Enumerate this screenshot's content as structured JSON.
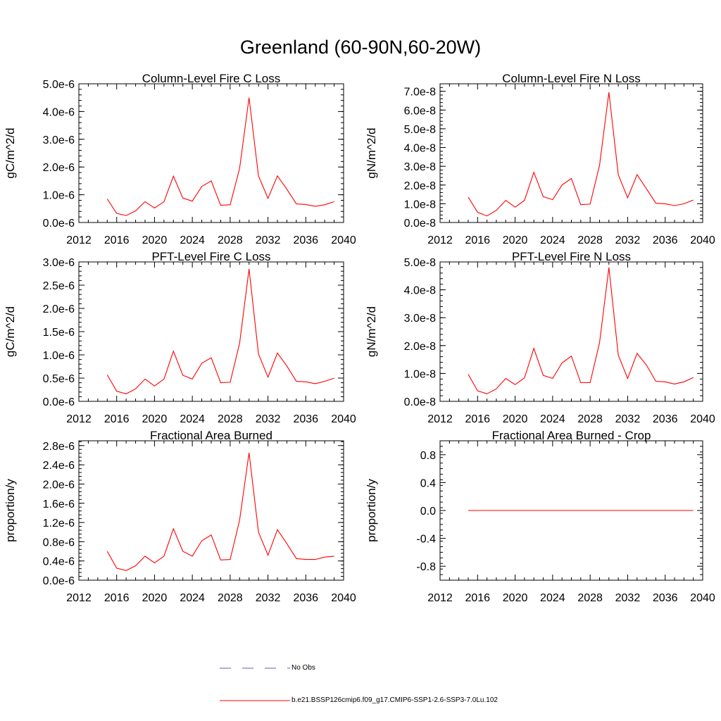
{
  "title": "Greenland (60-90N,60-20W)",
  "x_ticks": [
    2012,
    2016,
    2020,
    2024,
    2028,
    2032,
    2036,
    2040
  ],
  "legend": [
    {
      "label": "No Obs",
      "style": "dashed",
      "color": "#5b5bb5"
    },
    {
      "label": "b.e21.BSSP126cmip6.f09_g17.CMIP6-SSP1-2.6-SSP3-7.0Lu.102",
      "style": "solid",
      "color": "#ff0000"
    }
  ],
  "chart_data": [
    {
      "type": "line",
      "title": "Column-Level Fire C Loss",
      "ylabel": "gC/m^2/d",
      "xlim": [
        2012,
        2040
      ],
      "ylim": [
        0,
        5e-06
      ],
      "yticks": [
        0,
        1e-06,
        2e-06,
        3e-06,
        4e-06,
        5e-06
      ],
      "ytick_labels": [
        "0.0e-6",
        "1.0e-6",
        "2.0e-6",
        "3.0e-6",
        "4.0e-6",
        "5.0e-6"
      ],
      "x": [
        2015,
        2016,
        2017,
        2018,
        2019,
        2020,
        2021,
        2022,
        2023,
        2024,
        2025,
        2026,
        2027,
        2028,
        2029,
        2030,
        2031,
        2032,
        2033,
        2034,
        2035,
        2036,
        2037,
        2038,
        2039
      ],
      "series": [
        {
          "color": "#ff0000",
          "values": [
            8.5e-07,
            3.3e-07,
            2.5e-07,
            4.2e-07,
            7.5e-07,
            5.2e-07,
            7.5e-07,
            1.67e-06,
            8.8e-07,
            7.7e-07,
            1.3e-06,
            1.5e-06,
            6.2e-07,
            6.4e-07,
            1.95e-06,
            4.5e-06,
            1.68e-06,
            8.7e-07,
            1.68e-06,
            1.2e-06,
            6.7e-07,
            6.5e-07,
            5.8e-07,
            6.4e-07,
            7.5e-07
          ]
        }
      ]
    },
    {
      "type": "line",
      "title": "Column-Level Fire N Loss",
      "ylabel": "gN/m^2/d",
      "xlim": [
        2012,
        2040
      ],
      "ylim": [
        0,
        7.4e-08
      ],
      "yticks": [
        0,
        1e-08,
        2e-08,
        3e-08,
        4e-08,
        5e-08,
        6e-08,
        7e-08
      ],
      "ytick_labels": [
        "0.0e-8",
        "1.0e-8",
        "2.0e-8",
        "3.0e-8",
        "4.0e-8",
        "5.0e-8",
        "6.0e-8",
        "7.0e-8"
      ],
      "x": [
        2015,
        2016,
        2017,
        2018,
        2019,
        2020,
        2021,
        2022,
        2023,
        2024,
        2025,
        2026,
        2027,
        2028,
        2029,
        2030,
        2031,
        2032,
        2033,
        2034,
        2035,
        2036,
        2037,
        2038,
        2039
      ],
      "series": [
        {
          "color": "#ff0000",
          "values": [
            1.35e-08,
            5.5e-09,
            3.5e-09,
            6.5e-09,
            1.18e-08,
            8.2e-09,
            1.18e-08,
            2.68e-08,
            1.38e-08,
            1.22e-08,
            2e-08,
            2.35e-08,
            9.5e-09,
            9.8e-09,
            3.05e-08,
            6.95e-08,
            2.55e-08,
            1.32e-08,
            2.55e-08,
            1.8e-08,
            1.03e-08,
            1e-08,
            9e-09,
            1e-08,
            1.2e-08
          ]
        }
      ]
    },
    {
      "type": "line",
      "title": "PFT-Level Fire C Loss",
      "ylabel": "gC/m^2/d",
      "xlim": [
        2012,
        2040
      ],
      "ylim": [
        0,
        3e-06
      ],
      "yticks": [
        0,
        5e-07,
        1e-06,
        1.5e-06,
        2e-06,
        2.5e-06,
        3e-06
      ],
      "ytick_labels": [
        "0.0e-6",
        "0.5e-6",
        "1.0e-6",
        "1.5e-6",
        "2.0e-6",
        "2.5e-6",
        "3.0e-6"
      ],
      "x": [
        2015,
        2016,
        2017,
        2018,
        2019,
        2020,
        2021,
        2022,
        2023,
        2024,
        2025,
        2026,
        2027,
        2028,
        2029,
        2030,
        2031,
        2032,
        2033,
        2034,
        2035,
        2036,
        2037,
        2038,
        2039
      ],
      "series": [
        {
          "color": "#ff0000",
          "values": [
            5.7e-07,
            2.2e-07,
            1.6e-07,
            2.7e-07,
            4.8e-07,
            3.3e-07,
            4.8e-07,
            1.08e-06,
            5.6e-07,
            4.8e-07,
            8.2e-07,
            9.4e-07,
            4e-07,
            4.1e-07,
            1.25e-06,
            2.85e-06,
            1.02e-06,
            5.2e-07,
            1.04e-06,
            7.6e-07,
            4.3e-07,
            4.2e-07,
            3.8e-07,
            4.3e-07,
            5e-07
          ]
        }
      ]
    },
    {
      "type": "line",
      "title": "PFT-Level Fire N Loss",
      "ylabel": "gN/m^2/d",
      "xlim": [
        2012,
        2040
      ],
      "ylim": [
        0,
        5e-08
      ],
      "yticks": [
        0,
        1e-08,
        2e-08,
        3e-08,
        4e-08,
        5e-08
      ],
      "ytick_labels": [
        "0.0e-8",
        "1.0e-8",
        "2.0e-8",
        "3.0e-8",
        "4.0e-8",
        "5.0e-8"
      ],
      "x": [
        2015,
        2016,
        2017,
        2018,
        2019,
        2020,
        2021,
        2022,
        2023,
        2024,
        2025,
        2026,
        2027,
        2028,
        2029,
        2030,
        2031,
        2032,
        2033,
        2034,
        2035,
        2036,
        2037,
        2038,
        2039
      ],
      "series": [
        {
          "color": "#ff0000",
          "values": [
            9.7e-09,
            3.8e-09,
            2.7e-09,
            4.5e-09,
            8.2e-09,
            6e-09,
            8.4e-09,
            1.9e-08,
            9.3e-09,
            8.2e-09,
            1.38e-08,
            1.62e-08,
            6.7e-09,
            6.7e-09,
            2.1e-08,
            4.8e-08,
            1.66e-08,
            8.2e-09,
            1.72e-08,
            1.3e-08,
            7.2e-09,
            7e-09,
            6.2e-09,
            7e-09,
            8.5e-09
          ]
        }
      ]
    },
    {
      "type": "line",
      "title": "Fractional Area Burned",
      "ylabel": "proportion/y",
      "xlim": [
        2012,
        2040
      ],
      "ylim": [
        0,
        2.9e-06
      ],
      "yticks": [
        0,
        4e-07,
        8e-07,
        1.2e-06,
        1.6e-06,
        2e-06,
        2.4e-06,
        2.8e-06
      ],
      "ytick_labels": [
        "0.0e-6",
        "0.4e-6",
        "0.8e-6",
        "1.2e-6",
        "1.6e-6",
        "2.0e-6",
        "2.4e-6",
        "2.8e-6"
      ],
      "x": [
        2015,
        2016,
        2017,
        2018,
        2019,
        2020,
        2021,
        2022,
        2023,
        2024,
        2025,
        2026,
        2027,
        2028,
        2029,
        2030,
        2031,
        2032,
        2033,
        2034,
        2035,
        2036,
        2037,
        2038,
        2039
      ],
      "series": [
        {
          "color": "#ff0000",
          "values": [
            6e-07,
            2.5e-07,
            2e-07,
            3e-07,
            5e-07,
            3.6e-07,
            5e-07,
            1.07e-06,
            6e-07,
            5e-07,
            8.2e-07,
            9.4e-07,
            4.2e-07,
            4.3e-07,
            1.25e-06,
            2.65e-06,
            1e-06,
            5.2e-07,
            1.05e-06,
            7.6e-07,
            4.5e-07,
            4.3e-07,
            4.3e-07,
            4.8e-07,
            5e-07
          ]
        }
      ]
    },
    {
      "type": "line",
      "title": "Fractional Area Burned - Crop",
      "ylabel": "proportion/y",
      "xlim": [
        2012,
        2040
      ],
      "ylim": [
        -1.0,
        1.0
      ],
      "yticks": [
        -0.8,
        -0.4,
        0.0,
        0.4,
        0.8
      ],
      "ytick_labels": [
        "-0.8",
        "-0.4",
        "0.0",
        "0.4",
        "0.8"
      ],
      "x": [
        2015,
        2016,
        2017,
        2018,
        2019,
        2020,
        2021,
        2022,
        2023,
        2024,
        2025,
        2026,
        2027,
        2028,
        2029,
        2030,
        2031,
        2032,
        2033,
        2034,
        2035,
        2036,
        2037,
        2038,
        2039
      ],
      "series": [
        {
          "color": "#ff0000",
          "values": [
            0,
            0,
            0,
            0,
            0,
            0,
            0,
            0,
            0,
            0,
            0,
            0,
            0,
            0,
            0,
            0,
            0,
            0,
            0,
            0,
            0,
            0,
            0,
            0,
            0
          ]
        }
      ]
    }
  ]
}
